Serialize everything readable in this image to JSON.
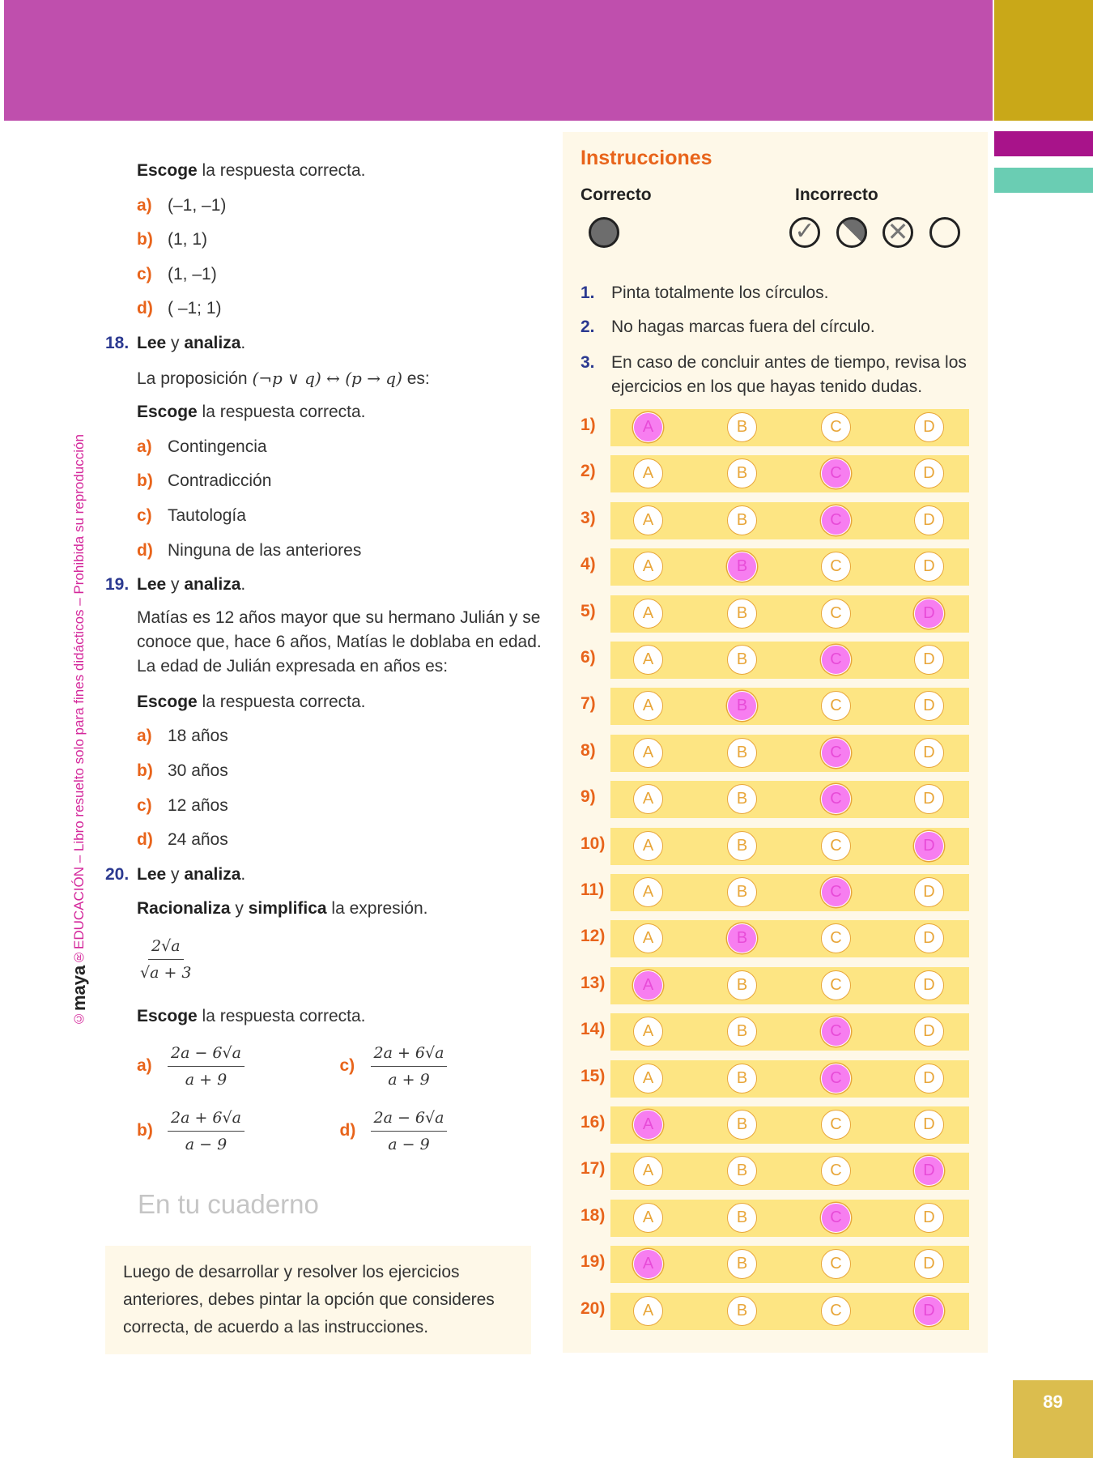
{
  "page_number": "89",
  "side_text": {
    "brand": "maya",
    "rest": "EDUCACIÓN – Libro resuelto solo para fines didácticos – Prohibida su reproducción",
    "copyright": "©",
    "reg": "®"
  },
  "q17": {
    "escoge_b": "Escoge",
    "escoge_r": " la respuesta correcta.",
    "options": [
      {
        "l": "a)",
        "t": "(–1, –1)"
      },
      {
        "l": "b)",
        "t": "(1, 1)"
      },
      {
        "l": "c)",
        "t": "(1, –1)"
      },
      {
        "l": "d)",
        "t": "( –1; 1)"
      }
    ]
  },
  "q18": {
    "num": "18.",
    "lee": "Lee",
    "y": " y ",
    "analiza": "analiza",
    "dot": ".",
    "prop_pre": "La proposición ",
    "prop_math": "(¬p ∨ q) ↔ (p → q)",
    "prop_post": " es:",
    "escoge_b": "Escoge",
    "escoge_r": " la respuesta correcta.",
    "options": [
      {
        "l": "a)",
        "t": "Contingencia"
      },
      {
        "l": "b)",
        "t": "Contradicción"
      },
      {
        "l": "c)",
        "t": "Tautología"
      },
      {
        "l": "d)",
        "t": "Ninguna de las anteriores"
      }
    ]
  },
  "q19": {
    "num": "19.",
    "lee": "Lee",
    "y": " y ",
    "analiza": "analiza",
    "dot": ".",
    "text": "Matías es 12 años mayor que su hermano Julián y se conoce que, hace 6 años, Matías le doblaba en edad. La edad de Julián expresada en años es:",
    "escoge_b": "Escoge",
    "escoge_r": " la respuesta correcta.",
    "options": [
      {
        "l": "a)",
        "t": "18 años"
      },
      {
        "l": "b)",
        "t": "30 años"
      },
      {
        "l": "c)",
        "t": "12 años"
      },
      {
        "l": "d)",
        "t": "24 años"
      }
    ]
  },
  "q20": {
    "num": "20.",
    "lee": "Lee",
    "y": " y ",
    "analiza": "analiza",
    "dot": ".",
    "rac": "Racionaliza",
    "y2": " y ",
    "simp": "simplifica",
    "rest": " la expresión.",
    "expr_num": "2√a",
    "expr_den": "√a + 3",
    "escoge_b": "Escoge",
    "escoge_r": " la respuesta correcta.",
    "options": [
      {
        "l": "a)",
        "num": "2a − 6√a",
        "den": "a + 9"
      },
      {
        "l": "c)",
        "num": "2a + 6√a",
        "den": "a + 9"
      },
      {
        "l": "b)",
        "num": "2a + 6√a",
        "den": "a − 9"
      },
      {
        "l": "d)",
        "num": "2a − 6√a",
        "den": "a − 9"
      }
    ]
  },
  "note": "Luego de desarrollar y resolver los ejercicios anteriores, debes pintar la opción que consideres correcta, de acuerdo a las instrucciones.",
  "instructions": {
    "title": "Instrucciones",
    "correct": "Correcto",
    "incorrect": "Incorrecto",
    "items": [
      {
        "n": "1.",
        "t": "Pinta totalmente los círculos."
      },
      {
        "n": "2.",
        "t": "No hagas marcas fuera del círculo."
      },
      {
        "n": "3.",
        "t": "En caso de concluir antes de tiempo, revisa los ejercicios en los que hayas tenido dudas."
      }
    ]
  },
  "answer_sheet": {
    "choices": [
      "A",
      "B",
      "C",
      "D"
    ],
    "answers": [
      "A",
      "C",
      "C",
      "B",
      "D",
      "C",
      "B",
      "C",
      "C",
      "D",
      "C",
      "B",
      "A",
      "C",
      "C",
      "A",
      "D",
      "C",
      "A",
      "D"
    ],
    "watermark": "En tu cuaderno"
  },
  "colors": {
    "header": "#bf4fad",
    "accent_orange": "#e8641b",
    "number_blue": "#2b3990",
    "marked_pink": "#f77ef0",
    "band_yellow": "#fde583"
  }
}
